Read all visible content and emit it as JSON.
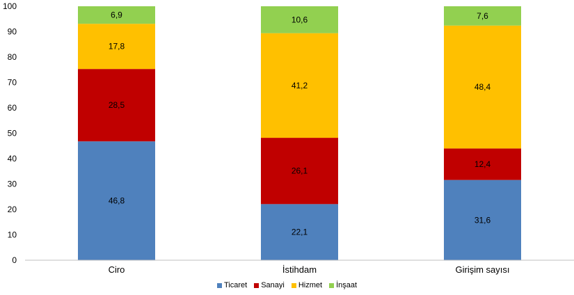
{
  "chart_data": {
    "type": "bar",
    "stacked": true,
    "categories": [
      "Ciro",
      "İstihdam",
      "Girişim sayısı"
    ],
    "series": [
      {
        "name": "Ticaret",
        "values": [
          46.8,
          22.1,
          31.6
        ],
        "labels": [
          "46,8",
          "22,1",
          "31,6"
        ],
        "color": "#4f81bd"
      },
      {
        "name": "Sanayi",
        "values": [
          28.5,
          26.1,
          12.4
        ],
        "labels": [
          "28,5",
          "26,1",
          "12,4"
        ],
        "color": "#c00000"
      },
      {
        "name": "Hizmet",
        "values": [
          17.8,
          41.2,
          48.4
        ],
        "labels": [
          "17,8",
          "41,2",
          "48,4"
        ],
        "color": "#ffc000"
      },
      {
        "name": "İnşaat",
        "values": [
          6.9,
          10.6,
          7.6
        ],
        "labels": [
          "6,9",
          "10,6",
          "7,6"
        ],
        "color": "#92d050"
      }
    ],
    "ylim": [
      0,
      100
    ],
    "yticks": [
      "0",
      "10",
      "20",
      "30",
      "40",
      "50",
      "60",
      "70",
      "80",
      "90",
      "100"
    ],
    "grid": false,
    "legend": "bottom"
  }
}
